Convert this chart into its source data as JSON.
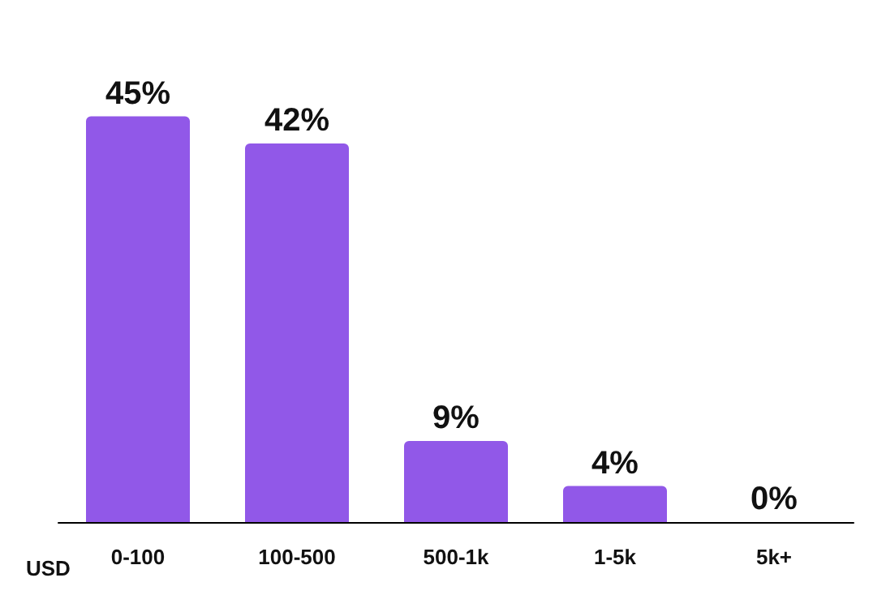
{
  "chart_data": {
    "type": "bar",
    "xlabel": "USD",
    "categories": [
      "0-100",
      "100-500",
      "500-1k",
      "1-5k",
      "5k+"
    ],
    "values": [
      45,
      42,
      9,
      4,
      0
    ],
    "value_labels": [
      "45%",
      "42%",
      "9%",
      "4%",
      "0%"
    ],
    "color": "#9158e8",
    "grid": false
  }
}
